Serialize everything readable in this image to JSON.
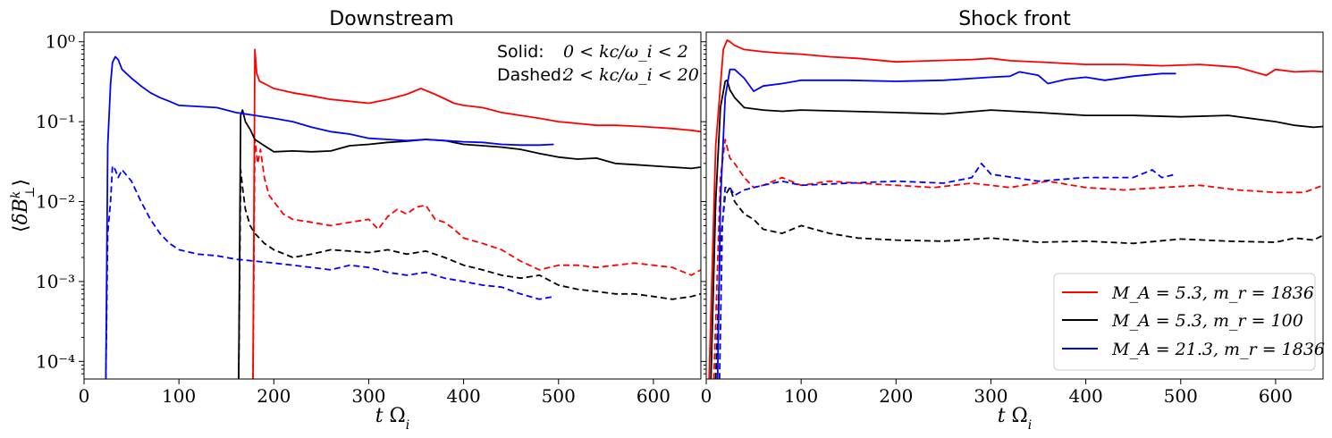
{
  "chart_data": [
    {
      "type": "line",
      "title": "Downstream",
      "xlabel": "t Ω_i",
      "ylabel": "⟨δB^k_⊥⟩",
      "yscale": "log",
      "xlim": [
        0,
        650
      ],
      "ylim_log10": [
        -4.22,
        0.12
      ],
      "x_ticks": [
        0,
        100,
        200,
        300,
        400,
        500,
        600
      ],
      "y_ticks": [
        "10^-4",
        "10^-3",
        "10^-2",
        "10^-1",
        "10^0"
      ],
      "annotation": {
        "solid_label": "Solid:",
        "solid_range": "0 < kc/ω_i < 2",
        "dashed_label": "Dashed:",
        "dashed_range": "2 < kc/ω_i < 20"
      },
      "series": [
        {
          "name": "M_A = 5.3, m_r = 1836 (solid)",
          "color": "#ff0000",
          "style": "solid",
          "x": [
            178,
            180,
            182,
            185,
            190,
            200,
            220,
            240,
            260,
            280,
            300,
            320,
            340,
            355,
            370,
            390,
            400,
            420,
            440,
            460,
            480,
            500,
            520,
            540,
            560,
            580,
            600,
            620,
            640,
            650
          ],
          "y": [
            6e-05,
            0.8,
            0.4,
            0.32,
            0.3,
            0.26,
            0.23,
            0.21,
            0.19,
            0.18,
            0.17,
            0.19,
            0.22,
            0.26,
            0.22,
            0.17,
            0.16,
            0.15,
            0.13,
            0.12,
            0.11,
            0.1,
            0.095,
            0.09,
            0.09,
            0.088,
            0.085,
            0.082,
            0.078,
            0.075
          ]
        },
        {
          "name": "M_A = 5.3, m_r = 1836 (dashed)",
          "color": "#ff0000",
          "style": "dashed",
          "x": [
            178,
            180,
            183,
            186,
            190,
            195,
            200,
            210,
            220,
            240,
            260,
            280,
            300,
            310,
            320,
            330,
            340,
            350,
            360,
            370,
            380,
            390,
            400,
            420,
            440,
            460,
            480,
            500,
            520,
            540,
            560,
            580,
            600,
            620,
            640,
            650
          ],
          "y": [
            6e-05,
            0.06,
            0.03,
            0.045,
            0.02,
            0.012,
            0.01,
            0.007,
            0.006,
            0.0055,
            0.005,
            0.0055,
            0.006,
            0.0045,
            0.0065,
            0.008,
            0.007,
            0.0085,
            0.009,
            0.006,
            0.0055,
            0.0045,
            0.0035,
            0.003,
            0.0025,
            0.0018,
            0.0014,
            0.0016,
            0.0016,
            0.0015,
            0.0016,
            0.0017,
            0.0016,
            0.0015,
            0.0012,
            0.0014
          ]
        },
        {
          "name": "M_A = 5.3, m_r = 100 (solid)",
          "color": "#000000",
          "style": "solid",
          "x": [
            163,
            165,
            167,
            170,
            175,
            180,
            190,
            200,
            220,
            240,
            260,
            280,
            300,
            320,
            340,
            360,
            380,
            400,
            420,
            440,
            460,
            480,
            500,
            520,
            540,
            560,
            580,
            600,
            620,
            640,
            650
          ],
          "y": [
            6e-05,
            0.12,
            0.14,
            0.1,
            0.08,
            0.06,
            0.05,
            0.042,
            0.043,
            0.042,
            0.043,
            0.05,
            0.052,
            0.055,
            0.057,
            0.06,
            0.058,
            0.052,
            0.05,
            0.048,
            0.045,
            0.04,
            0.036,
            0.034,
            0.035,
            0.03,
            0.029,
            0.028,
            0.027,
            0.026,
            0.027
          ]
        },
        {
          "name": "M_A = 5.3, m_r = 100 (dashed)",
          "color": "#000000",
          "style": "dashed",
          "x": [
            163,
            165,
            167,
            170,
            175,
            180,
            190,
            200,
            220,
            240,
            260,
            280,
            300,
            320,
            340,
            360,
            380,
            400,
            420,
            440,
            460,
            480,
            500,
            520,
            540,
            560,
            580,
            600,
            620,
            640,
            650
          ],
          "y": [
            6e-05,
            0.025,
            0.015,
            0.008,
            0.005,
            0.004,
            0.003,
            0.0025,
            0.002,
            0.0022,
            0.0025,
            0.0024,
            0.0023,
            0.0025,
            0.0022,
            0.0024,
            0.002,
            0.0016,
            0.0014,
            0.0012,
            0.0011,
            0.0012,
            0.0009,
            0.0008,
            0.00075,
            0.0007,
            0.0007,
            0.00065,
            0.0006,
            0.00065,
            0.0007
          ]
        },
        {
          "name": "M_A = 21.3, m_r = 1836 (solid)",
          "color": "#0000ff",
          "style": "solid",
          "x": [
            23,
            25,
            28,
            30,
            33,
            36,
            40,
            50,
            60,
            70,
            80,
            90,
            100,
            120,
            140,
            160,
            180,
            200,
            220,
            240,
            260,
            280,
            300,
            320,
            340,
            360,
            380,
            400,
            420,
            440,
            460,
            480,
            495
          ],
          "y": [
            6e-05,
            0.05,
            0.3,
            0.55,
            0.65,
            0.6,
            0.45,
            0.35,
            0.28,
            0.23,
            0.2,
            0.18,
            0.16,
            0.155,
            0.15,
            0.13,
            0.12,
            0.11,
            0.1,
            0.085,
            0.075,
            0.07,
            0.062,
            0.06,
            0.058,
            0.06,
            0.058,
            0.056,
            0.055,
            0.052,
            0.051,
            0.051,
            0.052
          ]
        },
        {
          "name": "M_A = 21.3, m_r = 1836 (dashed)",
          "color": "#0000ff",
          "style": "dashed",
          "x": [
            23,
            25,
            28,
            30,
            33,
            36,
            40,
            50,
            60,
            70,
            80,
            90,
            100,
            120,
            140,
            160,
            180,
            200,
            220,
            240,
            260,
            280,
            300,
            320,
            340,
            360,
            380,
            400,
            420,
            440,
            460,
            480,
            495
          ],
          "y": [
            6e-05,
            0.004,
            0.01,
            0.028,
            0.025,
            0.02,
            0.025,
            0.018,
            0.01,
            0.006,
            0.004,
            0.003,
            0.0025,
            0.0022,
            0.0021,
            0.0019,
            0.0018,
            0.0017,
            0.0016,
            0.0015,
            0.0014,
            0.0016,
            0.0015,
            0.0013,
            0.0012,
            0.0013,
            0.0011,
            0.001,
            0.0009,
            0.00085,
            0.0007,
            0.0006,
            0.00065
          ]
        }
      ]
    },
    {
      "type": "line",
      "title": "Shock front",
      "xlabel": "t Ω_i",
      "yscale": "log",
      "xlim": [
        0,
        650
      ],
      "ylim_log10": [
        -4.22,
        0.12
      ],
      "x_ticks": [
        0,
        100,
        200,
        300,
        400,
        500,
        600
      ],
      "legend": {
        "placement": "lower-right",
        "entries": [
          {
            "label": "M_A =  5.3, m_r = 1836",
            "color": "#ff0000"
          },
          {
            "label": "M_A =  5.3, m_r = 100",
            "color": "#000000"
          },
          {
            "label": "M_A = 21.3, m_r = 1836",
            "color": "#0000ff"
          }
        ]
      },
      "series": [
        {
          "name": "M_A = 5.3, m_r = 1836 (solid)",
          "color": "#ff0000",
          "style": "solid",
          "x": [
            3,
            10,
            18,
            22,
            25,
            30,
            40,
            60,
            80,
            100,
            130,
            160,
            200,
            240,
            280,
            300,
            320,
            360,
            400,
            440,
            480,
            520,
            560,
            590,
            600,
            620,
            640,
            650
          ],
          "y": [
            6e-05,
            0.05,
            0.8,
            1.05,
            1.0,
            0.9,
            0.8,
            0.75,
            0.72,
            0.7,
            0.65,
            0.62,
            0.56,
            0.58,
            0.6,
            0.62,
            0.58,
            0.55,
            0.52,
            0.52,
            0.5,
            0.52,
            0.48,
            0.38,
            0.45,
            0.42,
            0.43,
            0.42
          ]
        },
        {
          "name": "M_A = 5.3, m_r = 1836 (dashed)",
          "color": "#ff0000",
          "style": "dashed",
          "x": [
            8,
            15,
            20,
            25,
            30,
            40,
            50,
            60,
            80,
            100,
            130,
            160,
            200,
            240,
            280,
            320,
            360,
            400,
            440,
            480,
            520,
            560,
            600,
            630,
            650
          ],
          "y": [
            6e-05,
            0.02,
            0.06,
            0.035,
            0.03,
            0.02,
            0.015,
            0.016,
            0.02,
            0.016,
            0.018,
            0.017,
            0.016,
            0.015,
            0.017,
            0.015,
            0.018,
            0.015,
            0.014,
            0.015,
            0.016,
            0.014,
            0.013,
            0.013,
            0.016
          ]
        },
        {
          "name": "M_A = 5.3, m_r = 100 (solid)",
          "color": "#000000",
          "style": "solid",
          "x": [
            5,
            10,
            15,
            20,
            22,
            25,
            30,
            40,
            60,
            80,
            100,
            150,
            200,
            250,
            300,
            350,
            400,
            450,
            500,
            550,
            600,
            620,
            640,
            650
          ],
          "y": [
            6e-05,
            0.01,
            0.15,
            0.32,
            0.33,
            0.25,
            0.2,
            0.15,
            0.14,
            0.135,
            0.14,
            0.135,
            0.13,
            0.125,
            0.14,
            0.13,
            0.12,
            0.12,
            0.115,
            0.12,
            0.1,
            0.09,
            0.085,
            0.087
          ]
        },
        {
          "name": "M_A = 5.3, m_r = 100 (dashed)",
          "color": "#000000",
          "style": "dashed",
          "x": [
            10,
            15,
            20,
            25,
            30,
            40,
            50,
            60,
            80,
            100,
            130,
            160,
            200,
            250,
            300,
            350,
            400,
            450,
            500,
            550,
            600,
            620,
            640,
            650
          ],
          "y": [
            6e-05,
            0.003,
            0.012,
            0.015,
            0.01,
            0.007,
            0.006,
            0.0045,
            0.004,
            0.005,
            0.004,
            0.0035,
            0.0033,
            0.0032,
            0.0035,
            0.0031,
            0.0032,
            0.003,
            0.0034,
            0.0032,
            0.0031,
            0.0035,
            0.0033,
            0.0038
          ]
        },
        {
          "name": "M_A = 21.3, m_r = 1836 (solid)",
          "color": "#0000ff",
          "style": "solid",
          "x": [
            12,
            15,
            20,
            25,
            30,
            40,
            50,
            60,
            80,
            100,
            150,
            200,
            250,
            300,
            320,
            330,
            350,
            360,
            380,
            400,
            420,
            450,
            480,
            495
          ],
          "y": [
            6e-05,
            0.01,
            0.2,
            0.45,
            0.45,
            0.35,
            0.24,
            0.28,
            0.3,
            0.33,
            0.33,
            0.32,
            0.33,
            0.36,
            0.37,
            0.42,
            0.38,
            0.3,
            0.34,
            0.36,
            0.33,
            0.37,
            0.4,
            0.4
          ]
        },
        {
          "name": "M_A = 21.3, m_r = 1836 (dashed)",
          "color": "#0000ff",
          "style": "dashed",
          "x": [
            14,
            17,
            20,
            25,
            30,
            40,
            50,
            60,
            80,
            100,
            150,
            200,
            250,
            280,
            290,
            300,
            350,
            400,
            450,
            470,
            480,
            495
          ],
          "y": [
            6e-05,
            0.005,
            0.015,
            0.015,
            0.012,
            0.014,
            0.015,
            0.016,
            0.018,
            0.016,
            0.017,
            0.018,
            0.017,
            0.02,
            0.03,
            0.022,
            0.018,
            0.02,
            0.02,
            0.025,
            0.02,
            0.022
          ]
        }
      ]
    }
  ]
}
